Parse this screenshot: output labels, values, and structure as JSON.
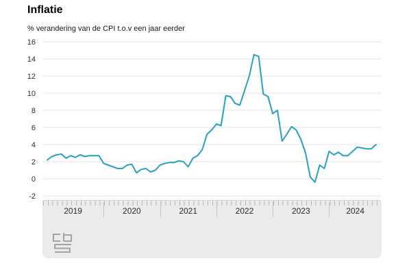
{
  "title": "Inflatie",
  "subtitle": "% verandering van de CPI t.o.v een jaar eerder",
  "colors": {
    "line": "#23a0c4",
    "grid": "#e3e3e3",
    "panel": "#ebebeb",
    "month_tick": "#b3b3b3",
    "year_divider": "#c6c6c6",
    "axis_text": "#2b2b2b",
    "logo": "#a3a3a3"
  },
  "footer": {
    "logo_name": "cbs-logo"
  },
  "chart_data": {
    "type": "line",
    "title": "Inflatie",
    "subtitle": "% verandering van de CPI t.o.v een jaar eerder",
    "unit": "% change of CPI vs one year earlier",
    "x_start": "2019-01",
    "x_end": "2024-11",
    "x_frequency": "monthly",
    "x_tick_years": [
      "2019",
      "2020",
      "2021",
      "2022",
      "2023",
      "2024"
    ],
    "y_ticks": [
      "16",
      "14",
      "12",
      "10",
      "8",
      "6",
      "4",
      "2",
      "0",
      "-2"
    ],
    "ylim": [
      -2,
      16
    ],
    "grid": true,
    "legend": "none",
    "series": [
      {
        "name": "Inflatie (CPI, % t.o.v. jaar eerder)",
        "values": [
          2.2,
          2.6,
          2.8,
          2.9,
          2.4,
          2.7,
          2.5,
          2.8,
          2.6,
          2.7,
          2.7,
          2.7,
          1.8,
          1.6,
          1.4,
          1.2,
          1.2,
          1.6,
          1.7,
          0.7,
          1.1,
          1.2,
          0.8,
          1.0,
          1.6,
          1.8,
          1.9,
          1.9,
          2.1,
          2.0,
          1.4,
          2.4,
          2.7,
          3.4,
          5.2,
          5.7,
          6.4,
          6.2,
          9.7,
          9.6,
          8.8,
          8.6,
          10.3,
          12.0,
          14.5,
          14.3,
          9.9,
          9.6,
          7.6,
          8.0,
          4.4,
          5.2,
          6.1,
          5.7,
          4.6,
          3.0,
          0.2,
          -0.4,
          1.6,
          1.2,
          3.2,
          2.8,
          3.1,
          2.7,
          2.7,
          3.2,
          3.7,
          3.6,
          3.5,
          3.5,
          4.0
        ]
      }
    ]
  }
}
